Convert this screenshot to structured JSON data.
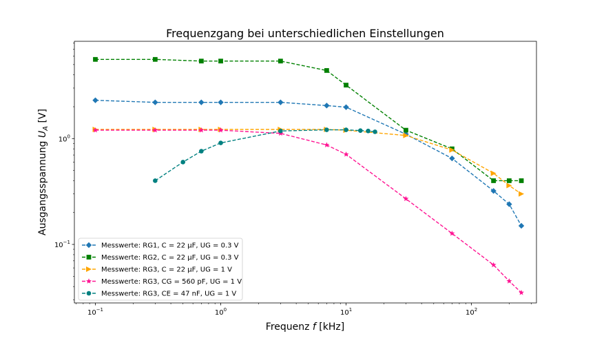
{
  "chart_data": {
    "type": "line",
    "title": "Frequenzgang bei unterschiedlichen Einstellungen",
    "xlabel": "Frequenz f [kHz]",
    "ylabel": "Ausgangsspannung U_A [V]",
    "xscale": "log",
    "yscale": "log",
    "xlim": [
      0.068,
      330
    ],
    "ylim": [
      0.028,
      8.3
    ],
    "x_ticks": [
      {
        "value": 0.1,
        "base": "10",
        "exp": "−1"
      },
      {
        "value": 1,
        "base": "10",
        "exp": "0"
      },
      {
        "value": 10,
        "base": "10",
        "exp": "1"
      },
      {
        "value": 100,
        "base": "10",
        "exp": "2"
      }
    ],
    "y_ticks": [
      {
        "value": 0.1,
        "base": "10",
        "exp": "−1"
      },
      {
        "value": 1,
        "base": "10",
        "exp": "0"
      }
    ],
    "grid": false,
    "legend_position": "lower-left",
    "series": [
      {
        "name": "Messwerte: RG1, C = 22 μF, UG = 0.3 V",
        "color": "#1f77b4",
        "marker": "diamond",
        "x": [
          0.1,
          0.3,
          0.7,
          1,
          3,
          7,
          10,
          30,
          70,
          150,
          200,
          250
        ],
        "y": [
          2.3,
          2.2,
          2.2,
          2.2,
          2.2,
          2.05,
          1.98,
          1.1,
          0.65,
          0.32,
          0.24,
          0.15
        ]
      },
      {
        "name": "Messwerte: RG2, C = 22 μF, UG = 0.3 V",
        "color": "#008000",
        "marker": "square",
        "x": [
          0.1,
          0.3,
          0.7,
          1,
          3,
          7,
          10,
          30,
          70,
          150,
          200,
          250
        ],
        "y": [
          5.6,
          5.6,
          5.4,
          5.4,
          5.4,
          4.4,
          3.2,
          1.2,
          0.8,
          0.4,
          0.4,
          0.4
        ]
      },
      {
        "name": "Messwerte: RG3, C = 22 μF, UG = 1 V",
        "color": "#ffa500",
        "marker": "triangle-right",
        "x": [
          0.1,
          0.3,
          0.7,
          1,
          3,
          7,
          10,
          30,
          70,
          150,
          200,
          250
        ],
        "y": [
          1.22,
          1.22,
          1.22,
          1.22,
          1.22,
          1.22,
          1.2,
          1.07,
          0.78,
          0.47,
          0.36,
          0.3
        ]
      },
      {
        "name": "Messwerte: RG3, CG = 560 pF, UG = 1 V",
        "color": "#ff1493",
        "marker": "star",
        "x": [
          0.1,
          0.3,
          0.7,
          1,
          3,
          7,
          10,
          30,
          70,
          150,
          200,
          250
        ],
        "y": [
          1.2,
          1.2,
          1.2,
          1.2,
          1.12,
          0.87,
          0.71,
          0.27,
          0.127,
          0.064,
          0.045,
          0.035
        ]
      },
      {
        "name": "Messwerte: RG3, CE = 47 nF, UG = 1 V",
        "color": "#008080",
        "marker": "circle",
        "x": [
          0.3,
          0.5,
          0.7,
          1,
          3,
          7,
          10,
          13,
          15,
          17
        ],
        "y": [
          0.4,
          0.6,
          0.76,
          0.91,
          1.18,
          1.21,
          1.21,
          1.19,
          1.18,
          1.16
        ]
      }
    ]
  }
}
